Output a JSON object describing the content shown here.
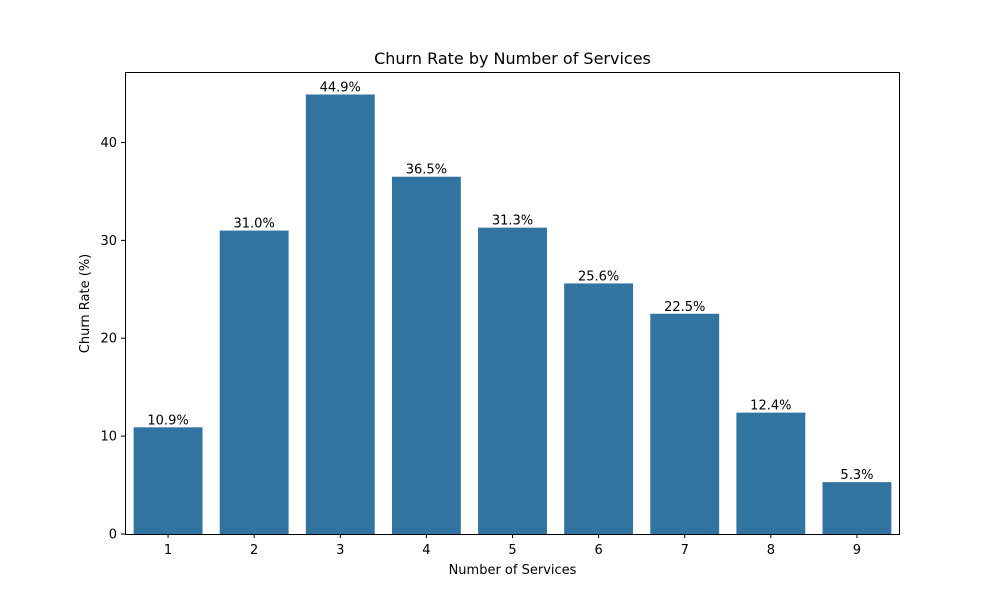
{
  "chart_data": {
    "type": "bar",
    "title": "Churn Rate by Number of Services",
    "xlabel": "Number of Services",
    "ylabel": "Churn Rate (%)",
    "categories": [
      "1",
      "2",
      "3",
      "4",
      "5",
      "6",
      "7",
      "8",
      "9"
    ],
    "values": [
      10.9,
      31.0,
      44.9,
      36.5,
      31.3,
      25.6,
      22.5,
      12.4,
      5.3
    ],
    "data_labels": [
      "10.9%",
      "31.0%",
      "44.9%",
      "36.5%",
      "31.3%",
      "25.6%",
      "22.5%",
      "12.4%",
      "5.3%"
    ],
    "yticks": [
      0,
      10,
      20,
      30,
      40
    ],
    "ylim": [
      0,
      47.2
    ],
    "grid": false,
    "bar_color": "#3274a1"
  }
}
